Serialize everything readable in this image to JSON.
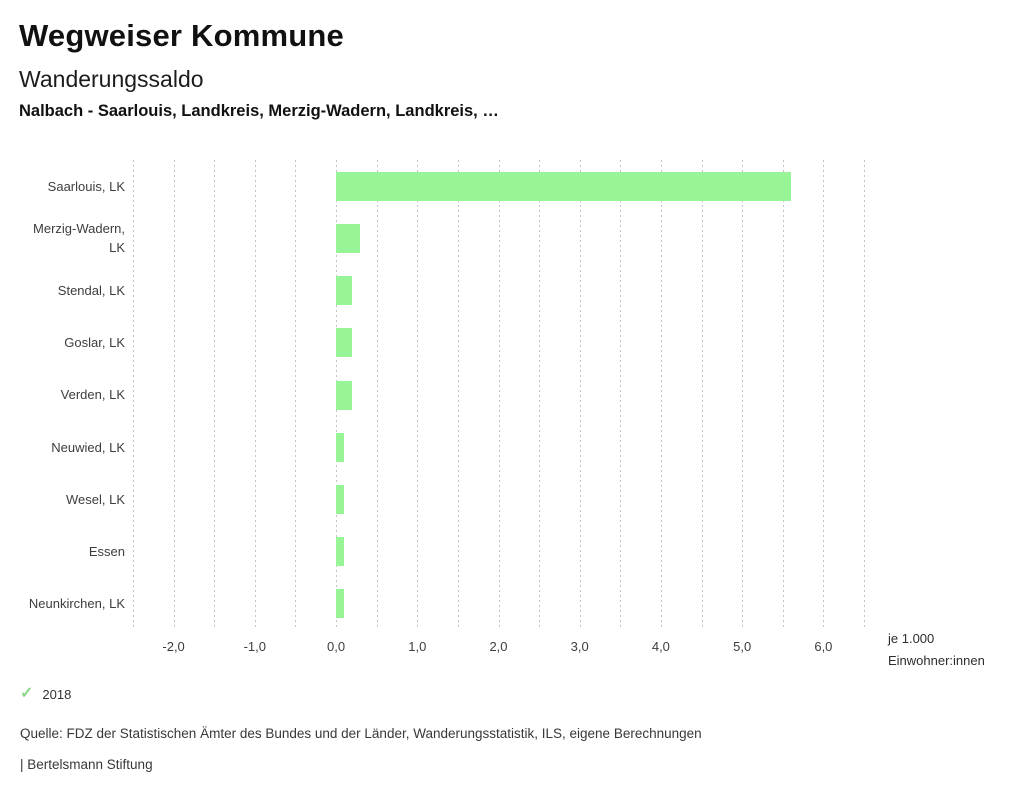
{
  "header": {
    "app_title": "Wegweiser Kommune",
    "chart_title": "Wanderungssaldo",
    "subtitle": "Nalbach - Saarlouis, Landkreis, Merzig-Wadern, Landkreis, …"
  },
  "chart_data": {
    "type": "bar",
    "orientation": "horizontal",
    "title": "Wanderungssaldo",
    "categories": [
      "Saarlouis, LK",
      "Merzig-Wadern, LK",
      "Stendal, LK",
      "Goslar, LK",
      "Verden, LK",
      "Neuwied, LK",
      "Wesel, LK",
      "Essen",
      "Neunkirchen, LK"
    ],
    "series": [
      {
        "name": "2018",
        "values": [
          5.6,
          0.3,
          0.2,
          0.2,
          0.2,
          0.1,
          0.1,
          0.1,
          0.1
        ]
      }
    ],
    "xlabel": "je 1.000 Einwohner:innen",
    "xlim": [
      -2.5,
      6.5
    ],
    "gridline_step": 0.5,
    "grid": "dotted-vertical",
    "x_tick_values": [
      -2,
      -1,
      0,
      1,
      2,
      3,
      4,
      5,
      6
    ],
    "x_tick_labels": [
      "-2,0",
      "-1,0",
      "0,0",
      "1,0",
      "2,0",
      "3,0",
      "4,0",
      "5,0",
      "6,0"
    ],
    "bar_color": "#97f497",
    "legend_position": "bottom-left"
  },
  "unit_label": {
    "line1": "je 1.000",
    "line2": "Einwohner:innen"
  },
  "legend": {
    "check_icon": "✓",
    "year": "2018",
    "check_color": "#8bd88b"
  },
  "footer": {
    "source": "Quelle: FDZ der Statistischen Ämter des Bundes und der Länder, Wanderungsstatistik, ILS, eigene Berechnungen",
    "branding": "| Bertelsmann Stiftung"
  }
}
